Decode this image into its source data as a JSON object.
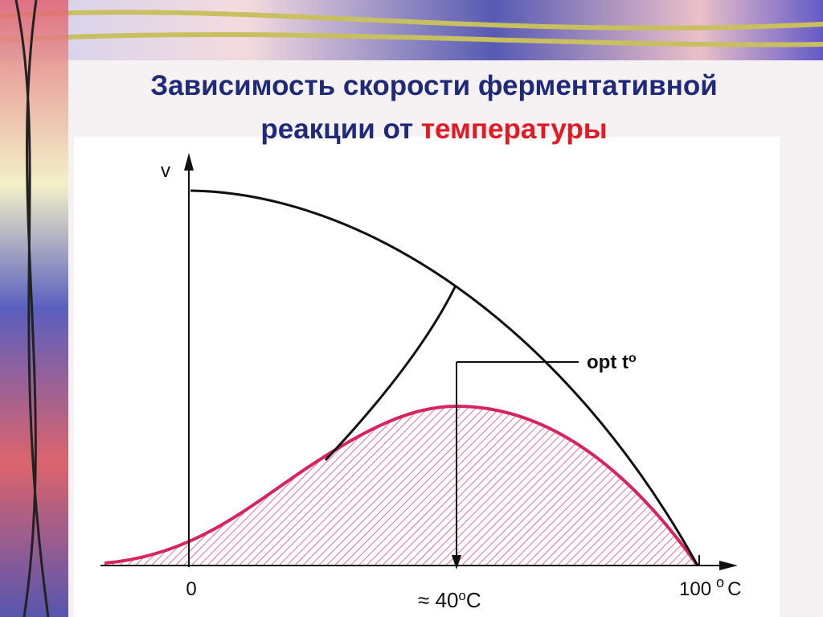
{
  "title": {
    "line1": "Зависимость скорости ферментативной",
    "line2_prefix": "реакции от",
    "line2_highlight": "температуры"
  },
  "axes": {
    "y_label": "v",
    "x_start": "0",
    "x_end_number": "100",
    "x_end_degree": "o",
    "x_end_unit": "C"
  },
  "annotations": {
    "optimum_label": "opt t",
    "optimum_degree": "o",
    "approx_value": "≈ 40",
    "approx_degree": "o",
    "approx_unit": "C"
  }
}
